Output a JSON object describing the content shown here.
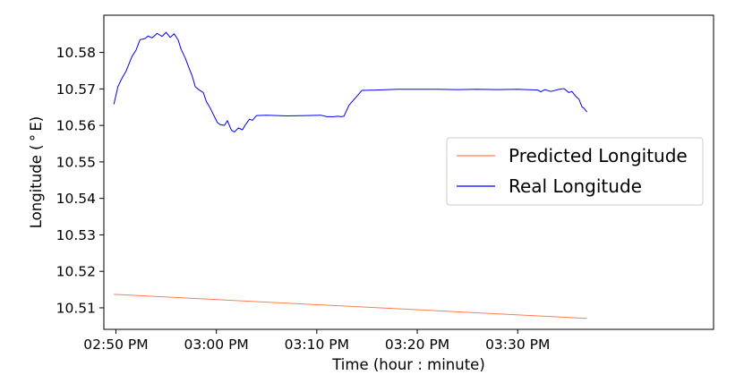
{
  "chart_data": {
    "type": "line",
    "xlabel": "Time (hour : minute)",
    "ylabel": "Longitude ( $^\\circ$E)",
    "ylabel_display": "Longitude ( ° E)",
    "xlim": [
      -1.2,
      59.5
    ],
    "ylim": [
      10.5041,
      10.5902
    ],
    "x_ticks": [
      0,
      10,
      20,
      30,
      40
    ],
    "x_tick_labels": [
      "02:50 PM",
      "03:00 PM",
      "03:10 PM",
      "03:20 PM",
      "03:30 PM"
    ],
    "y_ticks": [
      10.51,
      10.52,
      10.53,
      10.54,
      10.55,
      10.56,
      10.57,
      10.58
    ],
    "y_tick_labels": [
      "10.51",
      "10.52",
      "10.53",
      "10.54",
      "10.55",
      "10.56",
      "10.57",
      "10.58"
    ],
    "legend_position": "center-right",
    "grid": false,
    "series": [
      {
        "name": "Predicted Longitude",
        "color": "#ff7f50",
        "x": [
          -0.2,
          46.9
        ],
        "y": [
          10.5137,
          10.5071
        ]
      },
      {
        "name": "Real Longitude",
        "color": "#0000ff",
        "x": [
          -0.2,
          0.2,
          0.6,
          1.0,
          1.6,
          2.0,
          2.4,
          2.9,
          3.2,
          3.6,
          4.1,
          4.6,
          5.0,
          5.4,
          5.8,
          6.2,
          6.5,
          6.9,
          7.2,
          7.6,
          7.9,
          8.3,
          8.7,
          9.0,
          9.4,
          9.7,
          10.1,
          10.4,
          10.8,
          11.1,
          11.5,
          11.8,
          12.2,
          12.6,
          12.9,
          13.3,
          13.6,
          14.0,
          15.0,
          17.0,
          19.0,
          20.4,
          21.0,
          21.7,
          22.1,
          22.4,
          22.7,
          23.2,
          24.5,
          26.0,
          28.0,
          30.0,
          32.0,
          34.0,
          36.0,
          38.0,
          40.0,
          42.0,
          42.3,
          42.7,
          43.3,
          44.0,
          44.6,
          45.1,
          45.4,
          45.8,
          46.1,
          46.4,
          46.6,
          46.9
        ],
        "y": [
          10.5658,
          10.5706,
          10.5729,
          10.5748,
          10.5789,
          10.5806,
          10.5835,
          10.5838,
          10.5845,
          10.584,
          10.5852,
          10.5844,
          10.5855,
          10.5841,
          10.5851,
          10.5834,
          10.5808,
          10.5785,
          10.5763,
          10.5735,
          10.5706,
          10.5697,
          10.569,
          10.5666,
          10.5647,
          10.563,
          10.5608,
          10.5602,
          10.56,
          10.5613,
          10.5587,
          10.5582,
          10.5593,
          10.5588,
          10.5602,
          10.5617,
          10.5614,
          10.5627,
          10.5628,
          10.5626,
          10.5627,
          10.5628,
          10.5624,
          10.5624,
          10.5625,
          10.5624,
          10.5625,
          10.5655,
          10.5696,
          10.5697,
          10.5699,
          10.5699,
          10.5699,
          10.5698,
          10.5699,
          10.5698,
          10.5699,
          10.5697,
          10.5692,
          10.5698,
          10.5693,
          10.5698,
          10.5701,
          10.569,
          10.5693,
          10.5679,
          10.5672,
          10.5651,
          10.5647,
          10.5637
        ]
      }
    ]
  }
}
